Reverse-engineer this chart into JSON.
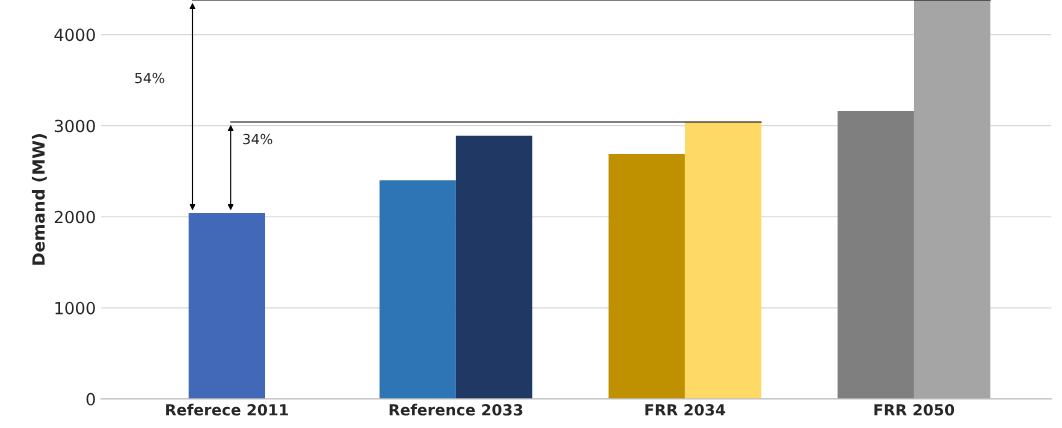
{
  "chart_data": {
    "type": "bar",
    "ylabel": "Demand (MW)",
    "categories": [
      "Referece 2011",
      "Reference 2033",
      "FRR 2034",
      "FRR 2050"
    ],
    "series": [
      {
        "colors": [
          "#4169b7",
          "#2e75b6",
          "#bf9000",
          "#7f7f7f"
        ],
        "values": [
          2040,
          2400,
          2690,
          3160
        ]
      },
      {
        "colors": [
          null,
          "#203864",
          "#ffd966",
          "#a5a5a5"
        ],
        "values": [
          null,
          2890,
          3040,
          4380
        ]
      }
    ],
    "ylim": [
      0,
      4380
    ],
    "yticks": [
      0,
      1000,
      2000,
      3000,
      4000
    ],
    "grid": "y",
    "ref_lines": [
      {
        "axis": "y",
        "value": 4380,
        "color": "#000000"
      },
      {
        "axis": "y",
        "value": 3040,
        "color": "#000000"
      }
    ],
    "annotations": [
      "54%",
      "34%"
    ]
  }
}
